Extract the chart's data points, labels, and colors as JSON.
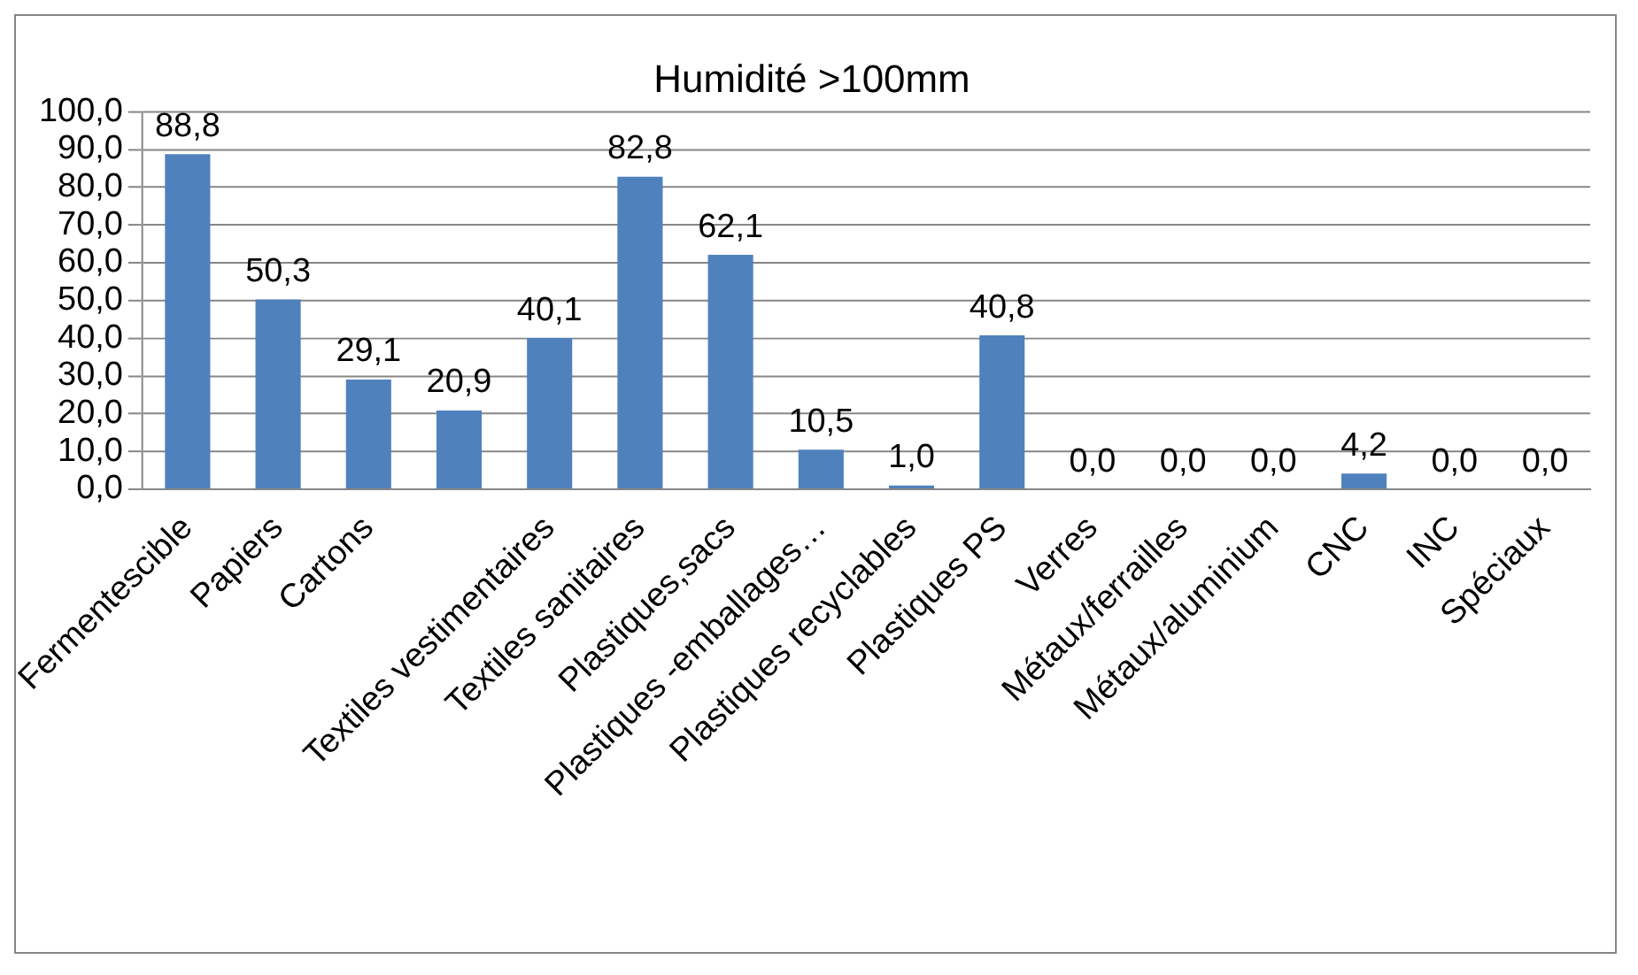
{
  "chart_data": {
    "type": "bar",
    "title": "Humidité >100mm",
    "categories": [
      "Fermentescible",
      "Papiers",
      "Cartons",
      null,
      "Textiles vestimentaires",
      "Textiles sanitaires",
      "Plastiques,sacs",
      "Plastiques -emballages…",
      "Plastiques recyclables",
      "Plastiques PS",
      "Verres",
      "Métaux/ferrailles",
      "Métaux/aluminium",
      "CNC",
      "INC",
      "Spéciaux"
    ],
    "values": [
      88.8,
      50.3,
      29.1,
      20.9,
      40.1,
      82.8,
      62.1,
      10.5,
      1.0,
      40.8,
      0.0,
      0.0,
      0.0,
      4.2,
      0.0,
      0.0
    ],
    "value_labels": [
      "88,8",
      "50,3",
      "29,1",
      "20,9",
      "40,1",
      "82,8",
      "62,1",
      "10,5",
      "1,0",
      "40,8",
      "0,0",
      "0,0",
      "0,0",
      "4,2",
      "0,0",
      "0,0"
    ],
    "color": "#4f81bd",
    "ylim": [
      0,
      100
    ],
    "yticks": [
      {
        "value": 0,
        "label": "0,0"
      },
      {
        "value": 10,
        "label": "10,0"
      },
      {
        "value": 20,
        "label": "20,0"
      },
      {
        "value": 30,
        "label": "30,0"
      },
      {
        "value": 40,
        "label": "40,0"
      },
      {
        "value": 50,
        "label": "50,0"
      },
      {
        "value": 60,
        "label": "60,0"
      },
      {
        "value": 70,
        "label": "70,0"
      },
      {
        "value": 80,
        "label": "80,0"
      },
      {
        "value": 90,
        "label": "90,0"
      },
      {
        "value": 100,
        "label": "100,0"
      }
    ],
    "grid": "y",
    "legend": false
  }
}
